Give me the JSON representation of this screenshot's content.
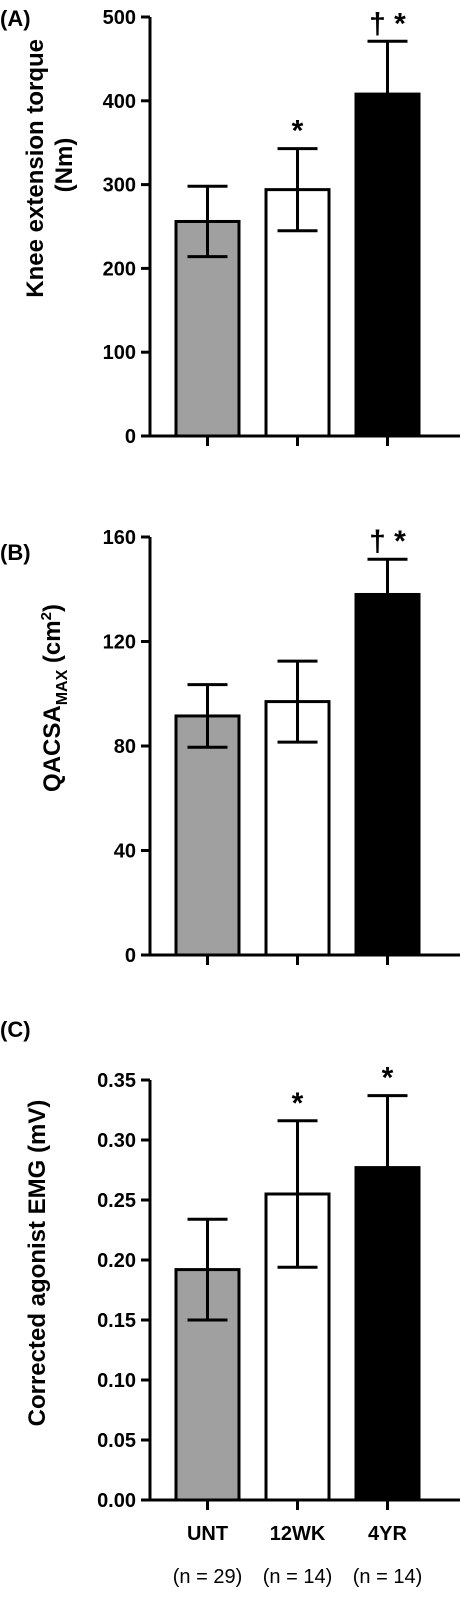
{
  "chart_data": [
    {
      "type": "bar",
      "panel_label": "(A)",
      "ylabel": "Knee extension torque (Nm)",
      "ylabel_lines": [
        "Knee extension torque",
        "(Nm)"
      ],
      "ylim": [
        0,
        500
      ],
      "yticks": [
        "0",
        "100",
        "200",
        "300",
        "400",
        "500"
      ],
      "categories": [
        "UNT",
        "12WK",
        "4YR"
      ],
      "values": [
        256,
        294,
        408
      ],
      "errors": [
        42,
        49,
        63
      ],
      "bar_colors": [
        "#a0a0a0",
        "#ffffff",
        "#000000"
      ],
      "annotations": [
        "",
        "*",
        "† *"
      ]
    },
    {
      "type": "bar",
      "panel_label": "(B)",
      "ylabel_parts": {
        "main": "QACSA",
        "sub": "MAX",
        "pre": " (cm",
        "sup": "2",
        "post": ")"
      },
      "ylim": [
        0,
        160
      ],
      "yticks": [
        "0",
        "40",
        "80",
        "120",
        "160"
      ],
      "categories": [
        "UNT",
        "12WK",
        "4YR"
      ],
      "values": [
        91.5,
        97,
        138
      ],
      "errors": [
        12,
        15.5,
        13.5
      ],
      "bar_colors": [
        "#a0a0a0",
        "#ffffff",
        "#000000"
      ],
      "annotations": [
        "",
        "",
        "† *"
      ]
    },
    {
      "type": "bar",
      "panel_label": "(C)",
      "ylabel": "Corrected agonist EMG (mV)",
      "ylim": [
        0,
        0.35
      ],
      "yticks": [
        "0.00",
        "0.05",
        "0.10",
        "0.15",
        "0.20",
        "0.25",
        "0.30",
        "0.35"
      ],
      "categories": [
        "UNT",
        "12WK",
        "4YR"
      ],
      "n_labels": [
        "(n = 29)",
        "(n = 14)",
        "(n = 14)"
      ],
      "values": [
        0.192,
        0.255,
        0.277
      ],
      "errors": [
        0.042,
        0.061,
        0.06
      ],
      "bar_colors": [
        "#a0a0a0",
        "#ffffff",
        "#000000"
      ],
      "annotations": [
        "",
        "*",
        "*"
      ]
    }
  ]
}
